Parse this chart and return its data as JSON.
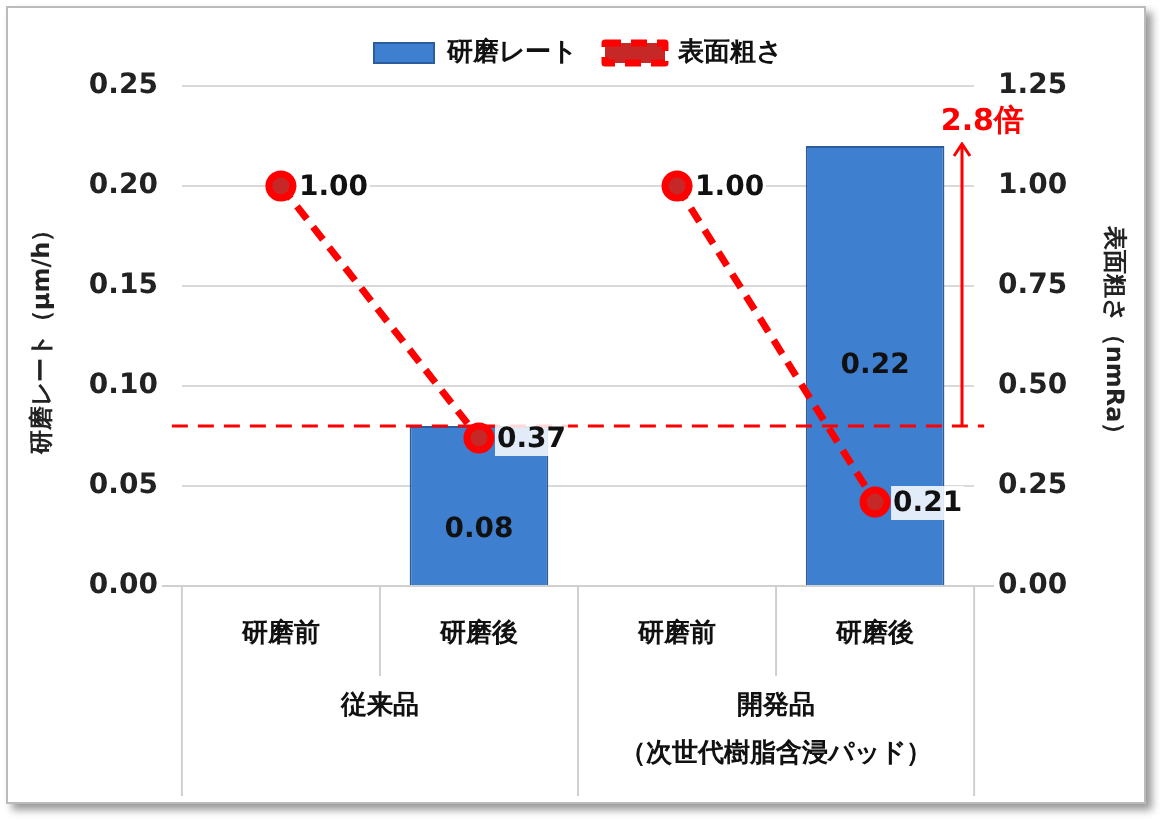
{
  "chart_data": {
    "type": "bar",
    "categories": [
      "研磨前",
      "研磨後",
      "研磨前",
      "研磨後"
    ],
    "ylabel": "研磨レート（μm/h）",
    "y2label": "表面粗さ（nmRa）",
    "series": [
      {
        "name": "研磨レート",
        "color": "#3f7fcf",
        "values": [
          null,
          0.08,
          null,
          0.22
        ],
        "value_labels": [
          null,
          "0.08",
          null,
          "0.22"
        ]
      },
      {
        "name": "表面粗さ",
        "type": "line",
        "axis": "y2",
        "color": "#ff0000",
        "line_style": "dashed",
        "marker": "circle",
        "values": [
          1.0,
          0.37,
          1.0,
          0.21
        ],
        "value_labels": [
          "1.00",
          "0.37",
          "1.00",
          "0.21"
        ]
      }
    ],
    "ylim": [
      0,
      0.25
    ],
    "yticks": [
      {
        "value": 0,
        "label": "0.00"
      },
      0.05,
      {
        "value": 0.1,
        "label": "0.10"
      },
      0.15,
      {
        "value": 0.2,
        "label": "0.20"
      },
      0.25
    ],
    "y2lim": [
      0,
      1.25
    ],
    "y2ticks": [
      {
        "value": 0,
        "label": "0.00"
      },
      0.25,
      {
        "value": 0.5,
        "label": "0.50"
      },
      0.75,
      {
        "value": 1,
        "label": "1.00"
      },
      1.25
    ],
    "ref_lines": [
      {
        "axis": "y",
        "value": 0.08,
        "color": "#ff0000",
        "line_style": "dashed"
      }
    ],
    "annotations": [
      "従来品",
      "開発品",
      "（次世代樹脂含浸パッド）",
      "2.8倍"
    ],
    "grid": "y",
    "legend": "top"
  }
}
